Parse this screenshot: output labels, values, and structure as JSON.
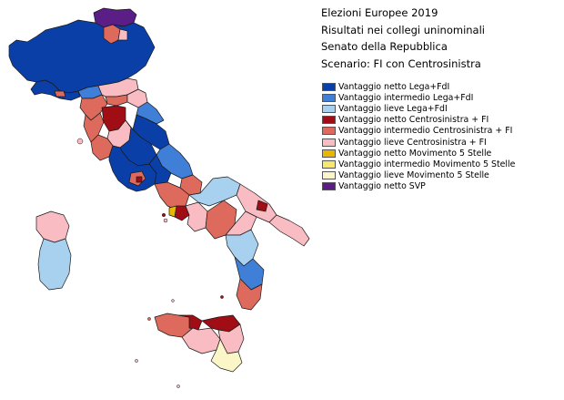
{
  "title": {
    "line1": "Elezioni Europee 2019",
    "line2": "Risultati nei collegi uninominali",
    "line3": "Senato della Repubblica",
    "line4": "Scenario: FI con Centrosinistra"
  },
  "legend": [
    {
      "label": "Vantaggio netto Lega+FdI",
      "color": "#0b3fa8"
    },
    {
      "label": "Vantaggio intermedio Lega+FdI",
      "color": "#3f7fd8"
    },
    {
      "label": "Vantaggio lieve Lega+FdI",
      "color": "#a8d0ef"
    },
    {
      "label": "Vantaggio netto Centrosinistra + FI",
      "color": "#a00d14"
    },
    {
      "label": "Vantaggio intermedio Centrosinistra + FI",
      "color": "#dd6a5c"
    },
    {
      "label": "Vantaggio lieve Centrosinistra + FI",
      "color": "#f8bcc2"
    },
    {
      "label": "Vantaggio netto Movimento 5 Stelle",
      "color": "#e8b800"
    },
    {
      "label": "Vantaggio intermedio Movimento 5 Stelle",
      "color": "#f6e96a"
    },
    {
      "label": "Vantaggio lieve Movimento 5 Stelle",
      "color": "#fbf6c8"
    },
    {
      "label": "Vantaggio netto SVP",
      "color": "#5a1e86"
    }
  ]
}
